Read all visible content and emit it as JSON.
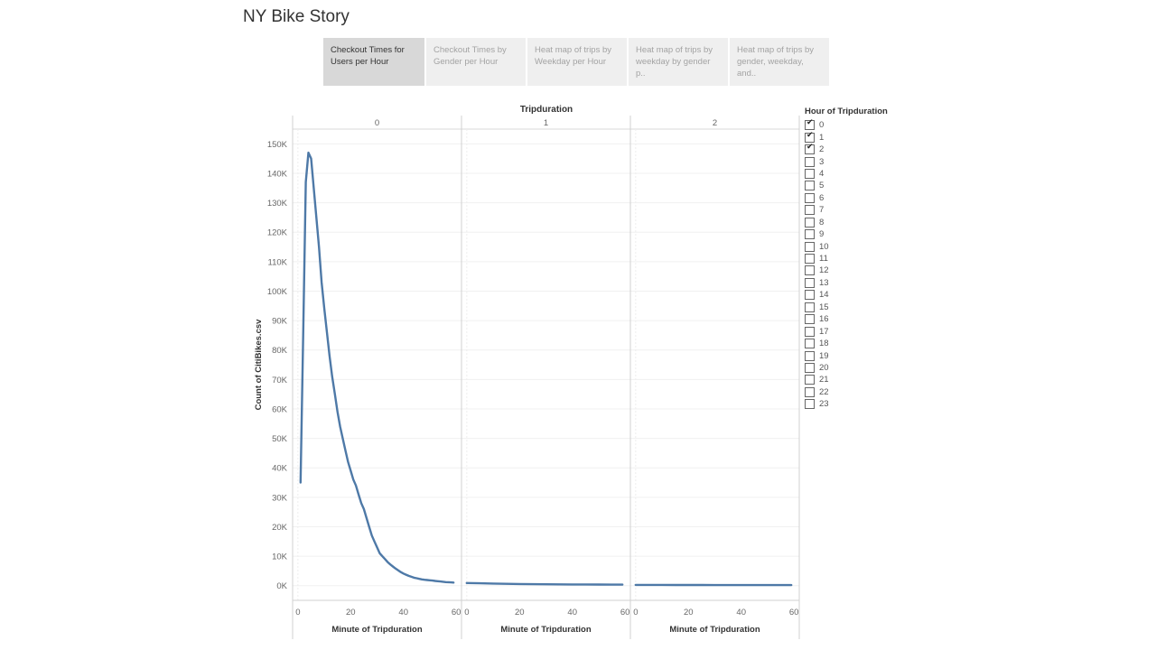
{
  "story": {
    "title": "NY Bike Story"
  },
  "tabs": [
    {
      "label": "Checkout Times for Users per Hour",
      "active": true
    },
    {
      "label": "Checkout Times by Gender per Hour",
      "active": false
    },
    {
      "label": "Heat map of trips by Weekday per Hour",
      "active": false
    },
    {
      "label": "Heat map of trips by weekday by gender p..",
      "active": false
    },
    {
      "label": "Heat map of trips by gender, weekday, and..",
      "active": false
    }
  ],
  "legend": {
    "title": "Hour of Tripduration",
    "items": [
      {
        "label": "0",
        "checked": true
      },
      {
        "label": "1",
        "checked": true
      },
      {
        "label": "2",
        "checked": true
      },
      {
        "label": "3",
        "checked": false
      },
      {
        "label": "4",
        "checked": false
      },
      {
        "label": "5",
        "checked": false
      },
      {
        "label": "6",
        "checked": false
      },
      {
        "label": "7",
        "checked": false
      },
      {
        "label": "8",
        "checked": false
      },
      {
        "label": "9",
        "checked": false
      },
      {
        "label": "10",
        "checked": false
      },
      {
        "label": "11",
        "checked": false
      },
      {
        "label": "12",
        "checked": false
      },
      {
        "label": "13",
        "checked": false
      },
      {
        "label": "14",
        "checked": false
      },
      {
        "label": "15",
        "checked": false
      },
      {
        "label": "16",
        "checked": false
      },
      {
        "label": "17",
        "checked": false
      },
      {
        "label": "18",
        "checked": false
      },
      {
        "label": "19",
        "checked": false
      },
      {
        "label": "20",
        "checked": false
      },
      {
        "label": "21",
        "checked": false
      },
      {
        "label": "22",
        "checked": false
      },
      {
        "label": "23",
        "checked": false
      }
    ]
  },
  "chart_data": {
    "type": "line",
    "facet_title": "Tripduration",
    "panels": [
      "0",
      "1",
      "2"
    ],
    "ylabel": "Count of CitiBikes.csv",
    "xlabel": "Minute of Tripduration",
    "ylim": [
      -5000,
      155000
    ],
    "xlim": [
      -2,
      62
    ],
    "yticks": [
      "0K",
      "10K",
      "20K",
      "30K",
      "40K",
      "50K",
      "60K",
      "70K",
      "80K",
      "90K",
      "100K",
      "110K",
      "120K",
      "130K",
      "140K",
      "150K"
    ],
    "ytick_values": [
      0,
      10000,
      20000,
      30000,
      40000,
      50000,
      60000,
      70000,
      80000,
      90000,
      100000,
      110000,
      120000,
      130000,
      140000,
      150000
    ],
    "xticks": [
      0,
      20,
      40,
      60
    ],
    "line_color": "#4e79a7",
    "series": [
      {
        "name": "0",
        "x": [
          1,
          2,
          3,
          4,
          5,
          6,
          7,
          8,
          9,
          10,
          11,
          12,
          13,
          14,
          15,
          16,
          17,
          18,
          19,
          20,
          21,
          22,
          23,
          24,
          25,
          26,
          27,
          28,
          29,
          30,
          31,
          32,
          33,
          34,
          35,
          36,
          37,
          38,
          39,
          40,
          41,
          42,
          43,
          44,
          45,
          46,
          47,
          48,
          49,
          50,
          51,
          52,
          53,
          54,
          55,
          56,
          57,
          58,
          59
        ],
        "y": [
          35000,
          85000,
          137000,
          147000,
          145000,
          135000,
          125000,
          115000,
          103000,
          94000,
          86000,
          78000,
          71000,
          65000,
          59000,
          54000,
          50000,
          46000,
          42000,
          39000,
          36000,
          34000,
          31000,
          28000,
          26000,
          23000,
          20000,
          17000,
          15000,
          13000,
          11000,
          10000,
          9000,
          8000,
          7200,
          6500,
          5800,
          5200,
          4600,
          4100,
          3700,
          3300,
          3000,
          2700,
          2500,
          2300,
          2100,
          2000,
          1900,
          1800,
          1700,
          1600,
          1500,
          1400,
          1300,
          1200,
          1150,
          1100,
          1050
        ]
      },
      {
        "name": "1",
        "x": [
          0,
          5,
          10,
          15,
          20,
          25,
          30,
          35,
          40,
          45,
          50,
          55,
          59
        ],
        "y": [
          900,
          800,
          700,
          600,
          550,
          500,
          450,
          420,
          400,
          380,
          360,
          340,
          330
        ]
      },
      {
        "name": "2",
        "x": [
          0,
          5,
          10,
          15,
          20,
          25,
          30,
          35,
          40,
          45,
          50,
          55,
          59
        ],
        "y": [
          250,
          240,
          230,
          220,
          210,
          200,
          195,
          190,
          185,
          180,
          175,
          170,
          165
        ]
      }
    ]
  }
}
